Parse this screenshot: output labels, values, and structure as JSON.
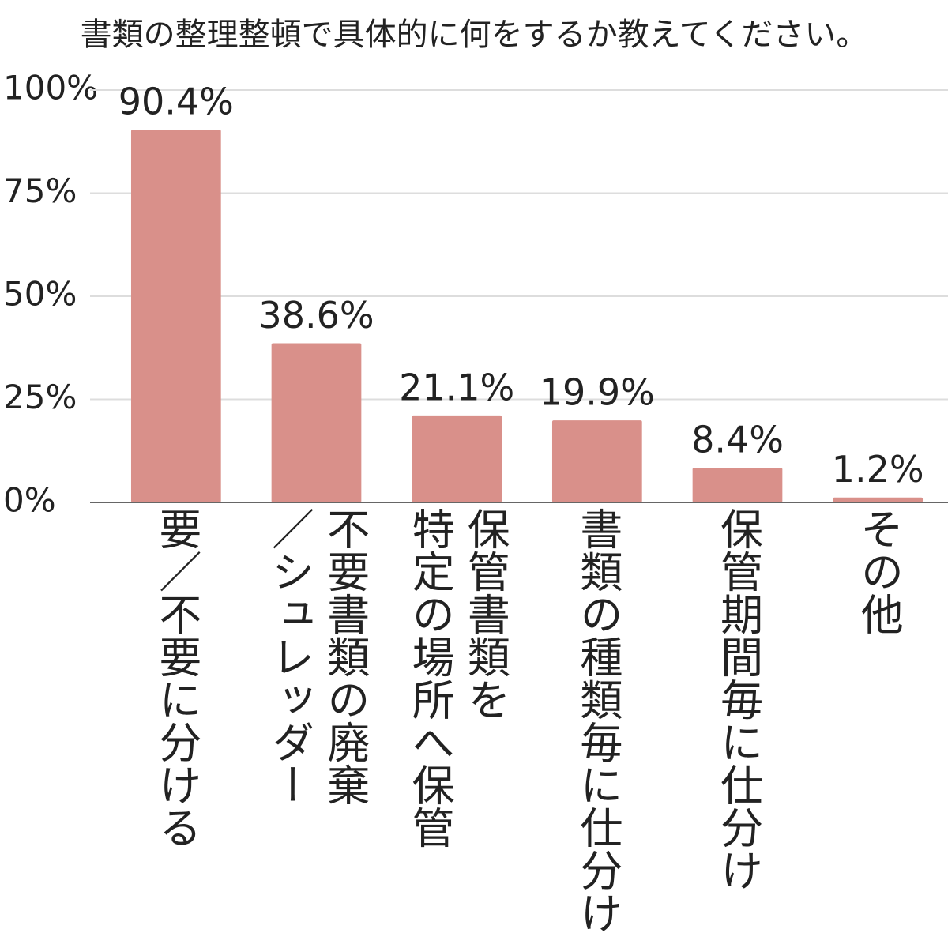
{
  "chart_data": {
    "type": "bar",
    "title": "書類の整理整頓で具体的に何をするか教えてください。",
    "categories": [
      "要／不要に分ける",
      "不要書類の廃棄\n／シュレッダー",
      "保管書類を\n特定の場所へ保管",
      "書類の種類毎に仕分け",
      "保管期間毎に仕分け",
      "その他"
    ],
    "values": [
      90.4,
      38.6,
      21.1,
      19.9,
      8.4,
      1.2
    ],
    "value_labels": [
      "90.4%",
      "38.6%",
      "21.1%",
      "19.9%",
      "8.4%",
      "1.2%"
    ],
    "color": "#d9908a",
    "ylim": [
      0,
      100
    ],
    "yticks": [
      {
        "value": 0,
        "label": "0%"
      },
      {
        "value": 25,
        "label": "25%"
      },
      {
        "value": 50,
        "label": "50%"
      },
      {
        "value": 75,
        "label": "75%"
      },
      {
        "value": 100,
        "label": "100%"
      }
    ],
    "grid": true
  }
}
